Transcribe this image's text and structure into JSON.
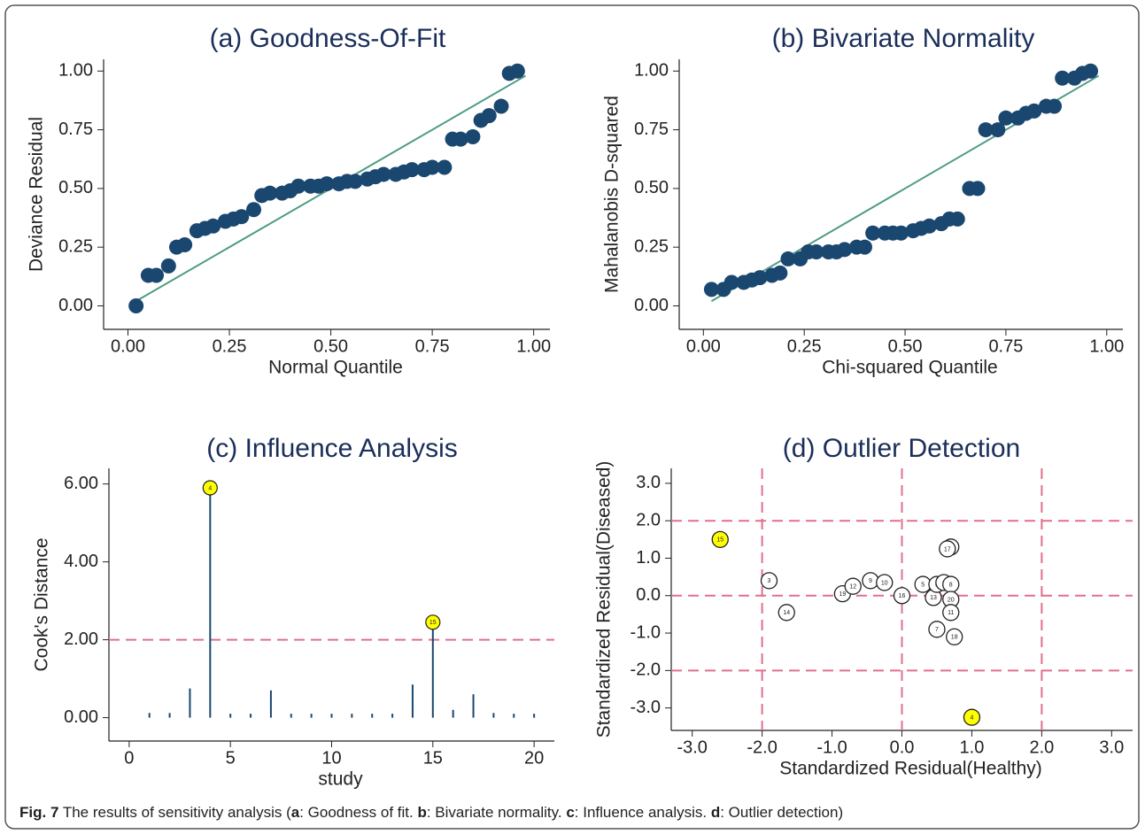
{
  "chart_data": [
    {
      "type": "scatter",
      "title": "(a) Goodness-Of-Fit",
      "xlabel": "Normal Quantile",
      "ylabel": "Deviance Residual",
      "x": [
        0.02,
        0.05,
        0.07,
        0.1,
        0.12,
        0.14,
        0.17,
        0.19,
        0.21,
        0.24,
        0.26,
        0.28,
        0.31,
        0.33,
        0.35,
        0.38,
        0.4,
        0.42,
        0.45,
        0.47,
        0.49,
        0.52,
        0.54,
        0.56,
        0.59,
        0.61,
        0.63,
        0.66,
        0.68,
        0.7,
        0.73,
        0.75,
        0.78,
        0.8,
        0.82,
        0.85,
        0.87,
        0.89,
        0.92,
        0.94,
        0.96
      ],
      "values": [
        0.0,
        0.13,
        0.13,
        0.17,
        0.25,
        0.26,
        0.32,
        0.33,
        0.34,
        0.36,
        0.37,
        0.38,
        0.41,
        0.47,
        0.48,
        0.48,
        0.49,
        0.51,
        0.51,
        0.51,
        0.52,
        0.52,
        0.53,
        0.53,
        0.54,
        0.55,
        0.56,
        0.56,
        0.57,
        0.58,
        0.58,
        0.59,
        0.59,
        0.71,
        0.71,
        0.72,
        0.79,
        0.81,
        0.85,
        0.99,
        1.0
      ],
      "color": "#1a476f",
      "reference_line": {
        "x": [
          0.02,
          0.98
        ],
        "y": [
          0.02,
          0.98
        ],
        "color": "#4e9b83"
      },
      "xlim": [
        -0.06,
        1.04
      ],
      "ylim": [
        -0.1,
        1.05
      ],
      "xticks": [
        {
          "value": 0,
          "label": "0.00"
        },
        {
          "value": 0.25,
          "label": "0.25"
        },
        {
          "value": 0.5,
          "label": "0.50"
        },
        {
          "value": 0.75,
          "label": "0.75"
        },
        {
          "value": 1,
          "label": "1.00"
        }
      ],
      "yticks": [
        {
          "value": 0,
          "label": "0.00"
        },
        {
          "value": 0.25,
          "label": "0.25"
        },
        {
          "value": 0.5,
          "label": "0.50"
        },
        {
          "value": 0.75,
          "label": "0.75"
        },
        {
          "value": 1,
          "label": "1.00"
        }
      ]
    },
    {
      "type": "scatter",
      "title": "(b) Bivariate Normality",
      "xlabel": "Chi-squared Quantile",
      "ylabel": "Mahalanobis D-squared",
      "x": [
        0.02,
        0.05,
        0.07,
        0.1,
        0.12,
        0.14,
        0.17,
        0.19,
        0.21,
        0.24,
        0.26,
        0.28,
        0.31,
        0.33,
        0.35,
        0.38,
        0.4,
        0.42,
        0.45,
        0.47,
        0.49,
        0.52,
        0.54,
        0.56,
        0.59,
        0.61,
        0.63,
        0.66,
        0.68,
        0.7,
        0.73,
        0.75,
        0.78,
        0.8,
        0.82,
        0.85,
        0.87,
        0.89,
        0.92,
        0.94,
        0.96
      ],
      "values": [
        0.07,
        0.07,
        0.1,
        0.1,
        0.11,
        0.12,
        0.13,
        0.14,
        0.2,
        0.2,
        0.23,
        0.23,
        0.23,
        0.23,
        0.24,
        0.25,
        0.25,
        0.31,
        0.31,
        0.31,
        0.31,
        0.32,
        0.33,
        0.34,
        0.35,
        0.37,
        0.37,
        0.5,
        0.5,
        0.75,
        0.75,
        0.8,
        0.8,
        0.82,
        0.83,
        0.85,
        0.85,
        0.97,
        0.97,
        0.99,
        1.0
      ],
      "color": "#1a476f",
      "reference_line": {
        "x": [
          0.02,
          0.98
        ],
        "y": [
          0.02,
          0.98
        ],
        "color": "#4e9b83"
      },
      "xlim": [
        -0.06,
        1.04
      ],
      "ylim": [
        -0.1,
        1.05
      ],
      "xticks": [
        {
          "value": 0,
          "label": "0.00"
        },
        {
          "value": 0.25,
          "label": "0.25"
        },
        {
          "value": 0.5,
          "label": "0.50"
        },
        {
          "value": 0.75,
          "label": "0.75"
        },
        {
          "value": 1,
          "label": "1.00"
        }
      ],
      "yticks": [
        {
          "value": 0,
          "label": "0.00"
        },
        {
          "value": 0.25,
          "label": "0.25"
        },
        {
          "value": 0.5,
          "label": "0.50"
        },
        {
          "value": 0.75,
          "label": "0.75"
        },
        {
          "value": 1,
          "label": "1.00"
        }
      ]
    },
    {
      "type": "stem",
      "title": "(c) Influence Analysis",
      "xlabel": "study",
      "ylabel": "Cook's Distance",
      "x": [
        1,
        2,
        3,
        4,
        5,
        6,
        7,
        8,
        9,
        10,
        11,
        12,
        13,
        14,
        15,
        16,
        17,
        18,
        19,
        20
      ],
      "values": [
        0.12,
        0.12,
        0.75,
        5.9,
        0.1,
        0.1,
        0.7,
        0.1,
        0.1,
        0.1,
        0.1,
        0.1,
        0.1,
        0.85,
        2.45,
        0.2,
        0.6,
        0.12,
        0.1,
        0.1
      ],
      "point_labels": [
        null,
        null,
        null,
        "4",
        null,
        null,
        null,
        null,
        null,
        null,
        null,
        null,
        null,
        null,
        "15",
        null,
        null,
        null,
        null,
        null
      ],
      "color": "#1a476f",
      "label_color": "#ffff00",
      "threshold": 2,
      "threshold_color": "#e0708a",
      "xlim": [
        -1,
        21
      ],
      "ylim": [
        -0.6,
        6.4
      ],
      "xticks": [
        0,
        5,
        10,
        15,
        20
      ],
      "yticks": [
        {
          "value": 0,
          "label": "0.00"
        },
        {
          "value": 2,
          "label": "2.00"
        },
        {
          "value": 4,
          "label": "4.00"
        },
        {
          "value": 6,
          "label": "6.00"
        }
      ]
    },
    {
      "type": "labeled_scatter",
      "title": "(d) Outlier Detection",
      "xlabel": "Standardized Residual(Healthy)",
      "ylabel": "Standardized Residual(Diseased)",
      "x": [
        -2.6,
        1.0,
        -1.9,
        -1.65,
        -0.85,
        -0.7,
        -0.45,
        -0.25,
        0.0,
        0.3,
        0.45,
        0.5,
        0.6,
        0.7,
        0.7,
        0.7,
        0.65,
        0.7,
        0.5,
        0.75
      ],
      "values": [
        1.5,
        -3.25,
        0.4,
        -0.45,
        0.05,
        0.25,
        0.4,
        0.35,
        0.0,
        0.3,
        -0.05,
        0.3,
        0.35,
        0.3,
        -0.1,
        1.3,
        1.25,
        -0.45,
        -0.9,
        -1.1
      ],
      "point_labels": [
        "15",
        "4",
        "3",
        "14",
        "19",
        "12",
        "9",
        "10",
        "16",
        "5",
        "13",
        "6",
        "1",
        "8",
        "20",
        "2",
        "17",
        "11",
        "7",
        "18"
      ],
      "point_colors": [
        "#ffff00",
        "#ffff00",
        "#ffffff",
        "#ffffff",
        "#ffffff",
        "#ffffff",
        "#ffffff",
        "#ffffff",
        "#ffffff",
        "#ffffff",
        "#ffffff",
        "#ffffff",
        "#ffffff",
        "#ffffff",
        "#ffffff",
        "#ffffff",
        "#ffffff",
        "#ffffff",
        "#ffffff",
        "#ffffff"
      ],
      "ref_x": [
        -2,
        0,
        2
      ],
      "ref_y": [
        -2,
        0,
        2
      ],
      "ref_color": "#e0708a",
      "xlim": [
        -3.3,
        3.3
      ],
      "ylim": [
        -3.6,
        3.4
      ],
      "xticks": [
        {
          "value": -3,
          "label": "-3.0"
        },
        {
          "value": -2,
          "label": "-2.0"
        },
        {
          "value": -1,
          "label": "-1.0"
        },
        {
          "value": 0,
          "label": "0.0"
        },
        {
          "value": 1,
          "label": "1.0"
        },
        {
          "value": 2,
          "label": "2.0"
        },
        {
          "value": 3,
          "label": "3.0"
        }
      ],
      "yticks": [
        {
          "value": -3,
          "label": "-3.0"
        },
        {
          "value": -2,
          "label": "-2.0"
        },
        {
          "value": -1,
          "label": "-1.0"
        },
        {
          "value": 0,
          "label": "0.0"
        },
        {
          "value": 1,
          "label": "1.0"
        },
        {
          "value": 2,
          "label": "2.0"
        },
        {
          "value": 3,
          "label": "3.0"
        }
      ]
    }
  ],
  "caption": {
    "fig": "Fig. 7",
    "parts": [
      " The results of sensitivity analysis (",
      "a",
      ": Goodness of fit. ",
      "b",
      ": Bivariate normality. ",
      "c",
      ": Influence analysis. ",
      "d",
      ": Outlier detection)"
    ]
  }
}
